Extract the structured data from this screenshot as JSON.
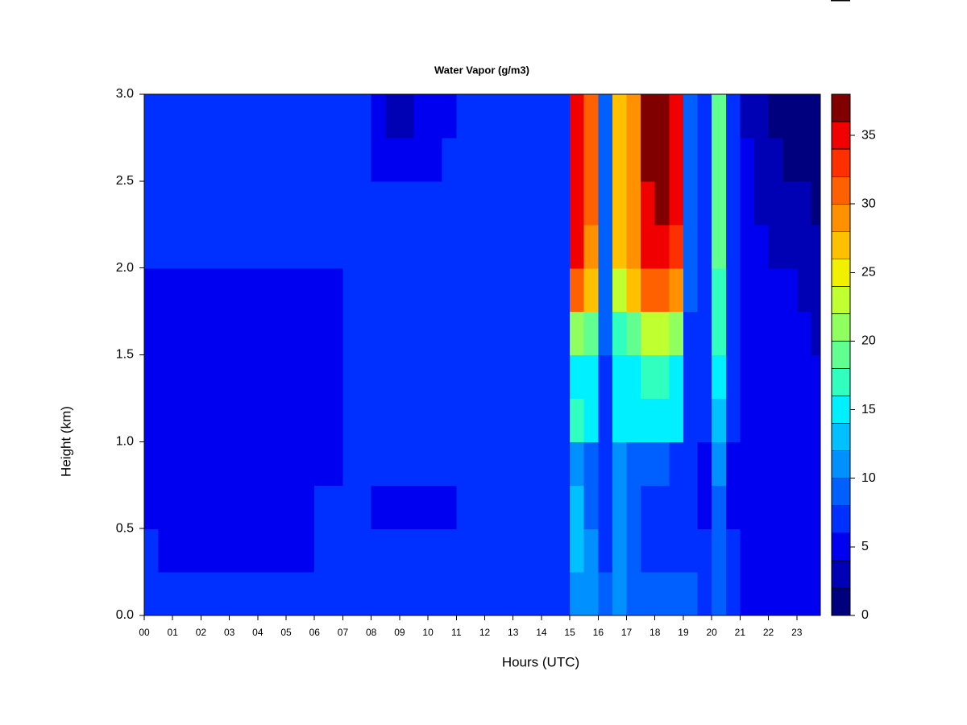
{
  "chart_data": {
    "type": "contour",
    "title": "Water Vapor (g/m3)",
    "x_label": "Hours (UTC)",
    "y_label": "Height (km)",
    "xlim": [
      0,
      23.83
    ],
    "ylim": [
      0,
      3
    ],
    "xticks": [
      {
        "value": 0,
        "label": "00"
      },
      {
        "value": 1,
        "label": "01"
      },
      {
        "value": 2,
        "label": "02"
      },
      {
        "value": 3,
        "label": "03"
      },
      {
        "value": 4,
        "label": "04"
      },
      {
        "value": 5,
        "label": "05"
      },
      {
        "value": 6,
        "label": "06"
      },
      {
        "value": 7,
        "label": "07"
      },
      {
        "value": 8,
        "label": "08"
      },
      {
        "value": 9,
        "label": "09"
      },
      {
        "value": 10,
        "label": "10"
      },
      {
        "value": 11,
        "label": "11"
      },
      {
        "value": 12,
        "label": "12"
      },
      {
        "value": 13,
        "label": "13"
      },
      {
        "value": 14,
        "label": "14"
      },
      {
        "value": 15,
        "label": "15"
      },
      {
        "value": 16,
        "label": "16"
      },
      {
        "value": 17,
        "label": "17"
      },
      {
        "value": 18,
        "label": "18"
      },
      {
        "value": 19,
        "label": "19"
      },
      {
        "value": 20,
        "label": "20"
      },
      {
        "value": 21,
        "label": "21"
      },
      {
        "value": 22,
        "label": "22"
      },
      {
        "value": 23,
        "label": "23"
      }
    ],
    "yticks": [
      {
        "value": 0,
        "label": "0.0"
      },
      0.5,
      {
        "value": 1,
        "label": "1.0"
      },
      1.5,
      {
        "value": 2,
        "label": "2.0"
      },
      2.5,
      {
        "value": 3,
        "label": "3.0"
      }
    ],
    "levels": [
      0,
      2,
      4,
      6,
      8,
      10,
      12,
      14,
      16,
      18,
      20,
      22,
      24,
      26,
      28,
      30,
      32,
      34,
      36,
      38
    ],
    "colors": [
      "#00007f",
      "#0000b4",
      "#0000f0",
      "#0030ff",
      "#0060ff",
      "#0090ff",
      "#00c0ff",
      "#00f0ff",
      "#30ffc0",
      "#60ff90",
      "#90ff60",
      "#c0ff30",
      "#f0f000",
      "#ffc000",
      "#ff9000",
      "#ff6000",
      "#ff3000",
      "#f00000",
      "#800000"
    ],
    "colorbar_ticks": [
      0,
      5,
      10,
      15,
      20,
      25,
      30,
      35
    ],
    "x": [
      0.25,
      0.75,
      1.25,
      1.75,
      2.25,
      2.75,
      3.25,
      3.75,
      4.25,
      4.75,
      5.25,
      5.75,
      6.25,
      6.75,
      7.25,
      7.75,
      8.25,
      8.75,
      9.25,
      9.75,
      10.25,
      10.75,
      11.25,
      11.75,
      12.25,
      12.75,
      13.25,
      13.75,
      14.25,
      14.75,
      15.25,
      15.75,
      16.25,
      16.75,
      17.25,
      17.75,
      18.25,
      18.75,
      19.25,
      19.75,
      20.25,
      20.75,
      21.25,
      21.75,
      22.25,
      22.75,
      23.25,
      23.75
    ],
    "y": [
      0.125,
      0.375,
      0.625,
      0.875,
      1.125,
      1.375,
      1.625,
      1.875,
      2.125,
      2.375,
      2.625,
      2.875
    ],
    "values": [
      [
        7,
        7,
        7,
        7,
        7,
        7,
        7,
        7,
        7,
        7,
        7,
        7,
        7,
        7,
        7,
        7,
        7,
        7,
        7,
        7,
        7,
        7,
        7,
        7,
        7,
        7,
        7,
        7,
        7,
        7,
        11,
        10,
        8,
        10,
        9,
        9,
        8,
        8,
        8,
        7,
        8,
        7,
        5,
        4,
        4,
        4,
        5,
        5
      ],
      [
        6,
        5,
        5,
        5,
        5,
        5,
        5,
        5,
        5,
        5,
        5,
        5,
        6,
        6,
        6,
        6,
        6,
        6,
        6,
        6,
        6,
        6,
        7,
        7,
        7,
        7,
        7,
        7,
        7,
        7,
        12,
        10,
        7,
        11,
        8,
        7,
        7,
        7,
        7,
        6,
        8,
        6,
        5,
        4,
        4,
        4,
        4,
        4
      ],
      [
        5,
        5,
        5,
        5,
        5,
        5,
        5,
        5,
        5,
        5,
        5,
        5,
        6,
        6,
        6,
        6,
        5,
        5,
        5,
        5,
        5,
        5,
        6,
        6,
        6,
        6,
        6,
        6,
        6,
        6,
        12,
        9,
        6,
        11,
        8,
        7,
        6,
        6,
        6,
        5,
        8,
        5,
        5,
        4,
        4,
        4,
        4,
        4
      ],
      [
        5,
        5,
        5,
        5,
        5,
        5,
        5,
        5,
        5,
        5,
        5,
        5,
        5,
        5,
        6,
        6,
        6,
        6,
        6,
        6,
        6,
        6,
        6,
        6,
        6,
        6,
        6,
        6,
        6,
        6,
        11,
        9,
        6,
        11,
        9,
        8,
        8,
        7,
        6,
        5,
        10,
        5,
        5,
        5,
        5,
        4,
        4,
        4
      ],
      [
        5,
        5,
        5,
        5,
        5,
        5,
        5,
        5,
        5,
        5,
        5,
        5,
        5,
        5,
        6,
        6,
        6,
        6,
        6,
        6,
        6,
        6,
        6,
        6,
        6,
        6,
        6,
        6,
        6,
        6,
        16,
        14,
        7,
        14,
        15,
        15,
        15,
        14,
        7,
        6,
        13,
        6,
        5,
        5,
        5,
        4,
        4,
        4
      ],
      [
        5,
        5,
        5,
        5,
        5,
        5,
        5,
        5,
        5,
        5,
        5,
        5,
        5,
        5,
        6,
        6,
        6,
        6,
        6,
        6,
        6,
        6,
        6,
        6,
        6,
        6,
        6,
        6,
        6,
        6,
        15,
        14,
        7,
        14,
        15,
        16,
        16,
        15,
        7,
        6,
        14,
        6,
        5,
        5,
        5,
        4,
        4,
        4
      ],
      [
        5,
        5,
        5,
        5,
        5,
        5,
        5,
        5,
        5,
        5,
        5,
        5,
        5,
        5,
        6,
        6,
        6,
        6,
        6,
        6,
        6,
        6,
        6,
        6,
        6,
        6,
        6,
        6,
        6,
        6,
        20,
        18,
        8,
        16,
        18,
        22,
        23,
        21,
        7,
        6,
        16,
        6,
        5,
        5,
        4,
        4,
        4,
        3
      ],
      [
        5,
        5,
        5,
        5,
        5,
        5,
        5,
        5,
        5,
        5,
        5,
        5,
        5,
        5,
        6,
        6,
        6,
        6,
        6,
        6,
        6,
        6,
        6,
        6,
        6,
        6,
        6,
        6,
        6,
        6,
        30,
        26,
        8,
        22,
        26,
        30,
        31,
        28,
        8,
        6,
        17,
        6,
        5,
        5,
        4,
        4,
        3,
        3
      ],
      [
        6,
        6,
        6,
        6,
        6,
        6,
        6,
        6,
        6,
        6,
        6,
        6,
        6,
        6,
        6,
        6,
        6,
        6,
        6,
        6,
        6,
        6,
        6,
        6,
        6,
        6,
        6,
        6,
        6,
        6,
        34,
        29,
        8,
        26,
        28,
        34,
        35,
        33,
        8,
        6,
        18,
        6,
        5,
        4,
        3,
        3,
        2,
        2
      ],
      [
        7,
        7,
        7,
        7,
        7,
        7,
        7,
        7,
        7,
        7,
        7,
        7,
        7,
        7,
        7,
        7,
        6,
        6,
        6,
        6,
        6,
        6,
        7,
        7,
        7,
        7,
        7,
        7,
        7,
        7,
        35,
        30,
        8,
        26,
        28,
        35,
        36,
        34,
        8,
        6,
        18,
        6,
        5,
        3,
        2,
        2,
        2,
        1
      ],
      [
        6,
        6,
        6,
        6,
        6,
        6,
        6,
        6,
        6,
        6,
        6,
        6,
        6,
        6,
        6,
        6,
        4,
        4,
        4,
        5,
        5,
        6,
        6,
        6,
        6,
        6,
        6,
        6,
        6,
        6,
        34,
        30,
        8,
        26,
        28,
        36,
        36,
        35,
        8,
        6,
        18,
        6,
        4,
        2,
        2,
        1,
        1,
        1
      ],
      [
        6,
        6,
        6,
        6,
        6,
        6,
        6,
        6,
        6,
        6,
        6,
        6,
        6,
        6,
        6,
        6,
        4,
        3,
        3,
        4,
        4,
        5,
        6,
        6,
        6,
        6,
        6,
        6,
        6,
        6,
        34,
        30,
        8,
        26,
        28,
        36,
        36,
        35,
        8,
        6,
        18,
        6,
        3,
        2,
        1,
        1,
        1,
        1
      ]
    ]
  }
}
